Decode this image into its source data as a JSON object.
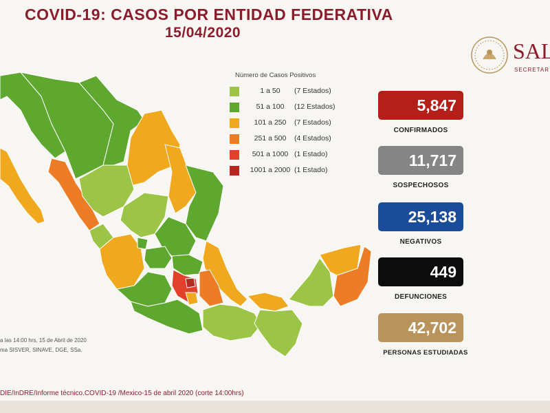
{
  "header": {
    "title_line1": "COVID-19: CASOS POR ENTIDAD FEDERATIVA",
    "title_line2": "15/04/2020"
  },
  "logo": {
    "name": "SAL",
    "subtitle": "SECRETAR"
  },
  "legend": {
    "title": "Número de Casos Positivos",
    "items": [
      {
        "range": "1 a 50",
        "count": "(7 Estados)",
        "color": "#9cc447"
      },
      {
        "range": "51 a 100",
        "count": "(12 Estados)",
        "color": "#5ea82f"
      },
      {
        "range": "101 a 250",
        "count": "(7 Estados)",
        "color": "#f0a81e"
      },
      {
        "range": "251 a 500",
        "count": "(4 Estados)",
        "color": "#ec7d26"
      },
      {
        "range": "501 a 1000",
        "count": "(1 Estado)",
        "color": "#e2402a"
      },
      {
        "range": "1001 a 2000",
        "count": "(1 Estado)",
        "color": "#b42a22"
      }
    ]
  },
  "stats": [
    {
      "value": "5,847",
      "label": "CONFIRMADOS",
      "color": "#b51f1a"
    },
    {
      "value": "11,717",
      "label": "SOSPECHOSOS",
      "color": "#858585"
    },
    {
      "value": "25,138",
      "label": "NEGATIVOS",
      "color": "#1a4c9a"
    },
    {
      "value": "449",
      "label": "DEFUNCIONES",
      "color": "#0c0c0c"
    },
    {
      "value": "42,702",
      "label": "PERSONAS ESTUDIADAS",
      "color": "#b8945c"
    }
  ],
  "notes": {
    "line1": "a las 14:00 hrs, 15 de Abril de 2020",
    "line2": "ma SISVER, SINAVE, DGE, SSa."
  },
  "footer": "DIE/InDRE/Informe técnico.COVID-19 /Mexico-15 de abril 2020 (corte 14:00hrs)"
}
